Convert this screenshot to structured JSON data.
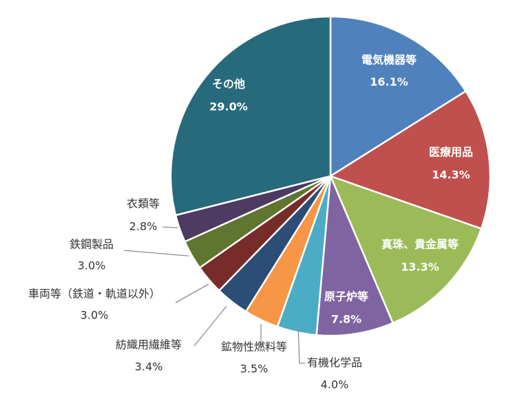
{
  "chart_data": {
    "type": "pie",
    "title": "",
    "slices": [
      {
        "label": "電気機器等",
        "value": 16.1,
        "display": "16.1%",
        "color": "#4f81bd",
        "label_inside": true
      },
      {
        "label": "医療用品",
        "value": 14.3,
        "display": "14.3%",
        "color": "#c0504d",
        "label_inside": true
      },
      {
        "label": "真珠、貴金属等",
        "value": 13.3,
        "display": "13.3%",
        "color": "#9bbb59",
        "label_inside": true
      },
      {
        "label": "原子炉等",
        "value": 7.8,
        "display": "7.8%",
        "color": "#8064a2",
        "label_inside": true
      },
      {
        "label": "有機化学品",
        "value": 4.0,
        "display": "4.0%",
        "color": "#4bacc6",
        "label_inside": false
      },
      {
        "label": "鉱物性燃料等",
        "value": 3.5,
        "display": "3.5%",
        "color": "#f79646",
        "label_inside": false
      },
      {
        "label": "紡織用繊維等",
        "value": 3.4,
        "display": "3.4%",
        "color": "#2c4d75",
        "label_inside": false
      },
      {
        "label": "車両等（鉄道・軌道以外）",
        "value": 3.0,
        "display": "3.0%",
        "color": "#772c2a",
        "label_inside": false
      },
      {
        "label": "鉄鋼製品",
        "value": 3.0,
        "display": "3.0%",
        "color": "#5f7530",
        "label_inside": false
      },
      {
        "label": "衣類等",
        "value": 2.8,
        "display": "2.8%",
        "color": "#4d3b62",
        "label_inside": false
      },
      {
        "label": "その他",
        "value": 29.0,
        "display": "29.0%",
        "color": "#276a7c",
        "label_inside": true
      }
    ]
  }
}
